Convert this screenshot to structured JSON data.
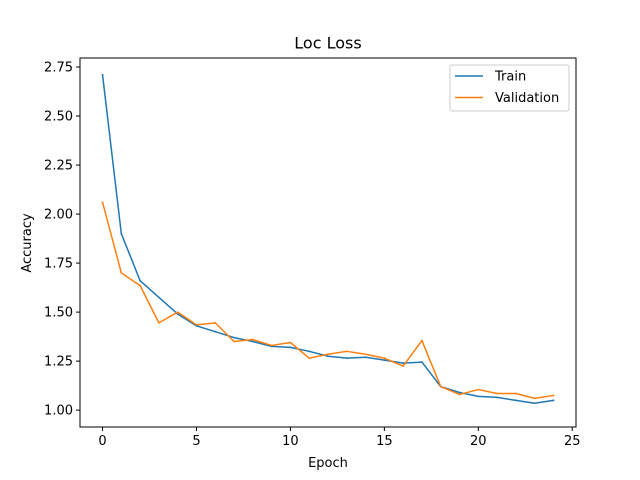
{
  "chart_data": {
    "type": "line",
    "title": "Loc Loss",
    "xlabel": "Epoch",
    "ylabel": "Accuracy",
    "xlim": [
      -1.2,
      25.2
    ],
    "ylim": [
      0.914,
      2.796
    ],
    "x_ticks": [
      0,
      5,
      10,
      15,
      20,
      25
    ],
    "x_tick_labels": [
      "0",
      "5",
      "10",
      "15",
      "20",
      "25"
    ],
    "y_ticks": [
      1.0,
      1.25,
      1.5,
      1.75,
      2.0,
      2.25,
      2.5,
      2.75
    ],
    "y_tick_labels": [
      "1.00",
      "1.25",
      "1.50",
      "1.75",
      "2.00",
      "2.25",
      "2.50",
      "2.75"
    ],
    "grid": false,
    "legend_position": "top-right",
    "series": [
      {
        "name": "Train",
        "color": "#1f77b4",
        "x": [
          0,
          1,
          2,
          4,
          5,
          6,
          7,
          8,
          9,
          10,
          11,
          12,
          13,
          14,
          15,
          16,
          17,
          18,
          19,
          20,
          21,
          22,
          23,
          24
        ],
        "values": [
          2.71,
          1.9,
          1.66,
          1.49,
          1.43,
          1.4,
          1.37,
          1.35,
          1.325,
          1.32,
          1.3,
          1.275,
          1.265,
          1.27,
          1.255,
          1.24,
          1.245,
          1.12,
          1.09,
          1.07,
          1.065,
          1.05,
          1.035,
          1.05
        ]
      },
      {
        "name": "Validation",
        "color": "#ff7f0e",
        "x": [
          0,
          1,
          2,
          3,
          4,
          5,
          6,
          7,
          8,
          9,
          10,
          11,
          12,
          13,
          14,
          15,
          16,
          17,
          18,
          19,
          20,
          21,
          22,
          23,
          24
        ],
        "values": [
          2.06,
          1.7,
          1.635,
          1.445,
          1.5,
          1.435,
          1.445,
          1.35,
          1.36,
          1.33,
          1.345,
          1.265,
          1.285,
          1.3,
          1.285,
          1.265,
          1.225,
          1.355,
          1.12,
          1.08,
          1.105,
          1.085,
          1.085,
          1.06,
          1.075
        ]
      }
    ]
  }
}
